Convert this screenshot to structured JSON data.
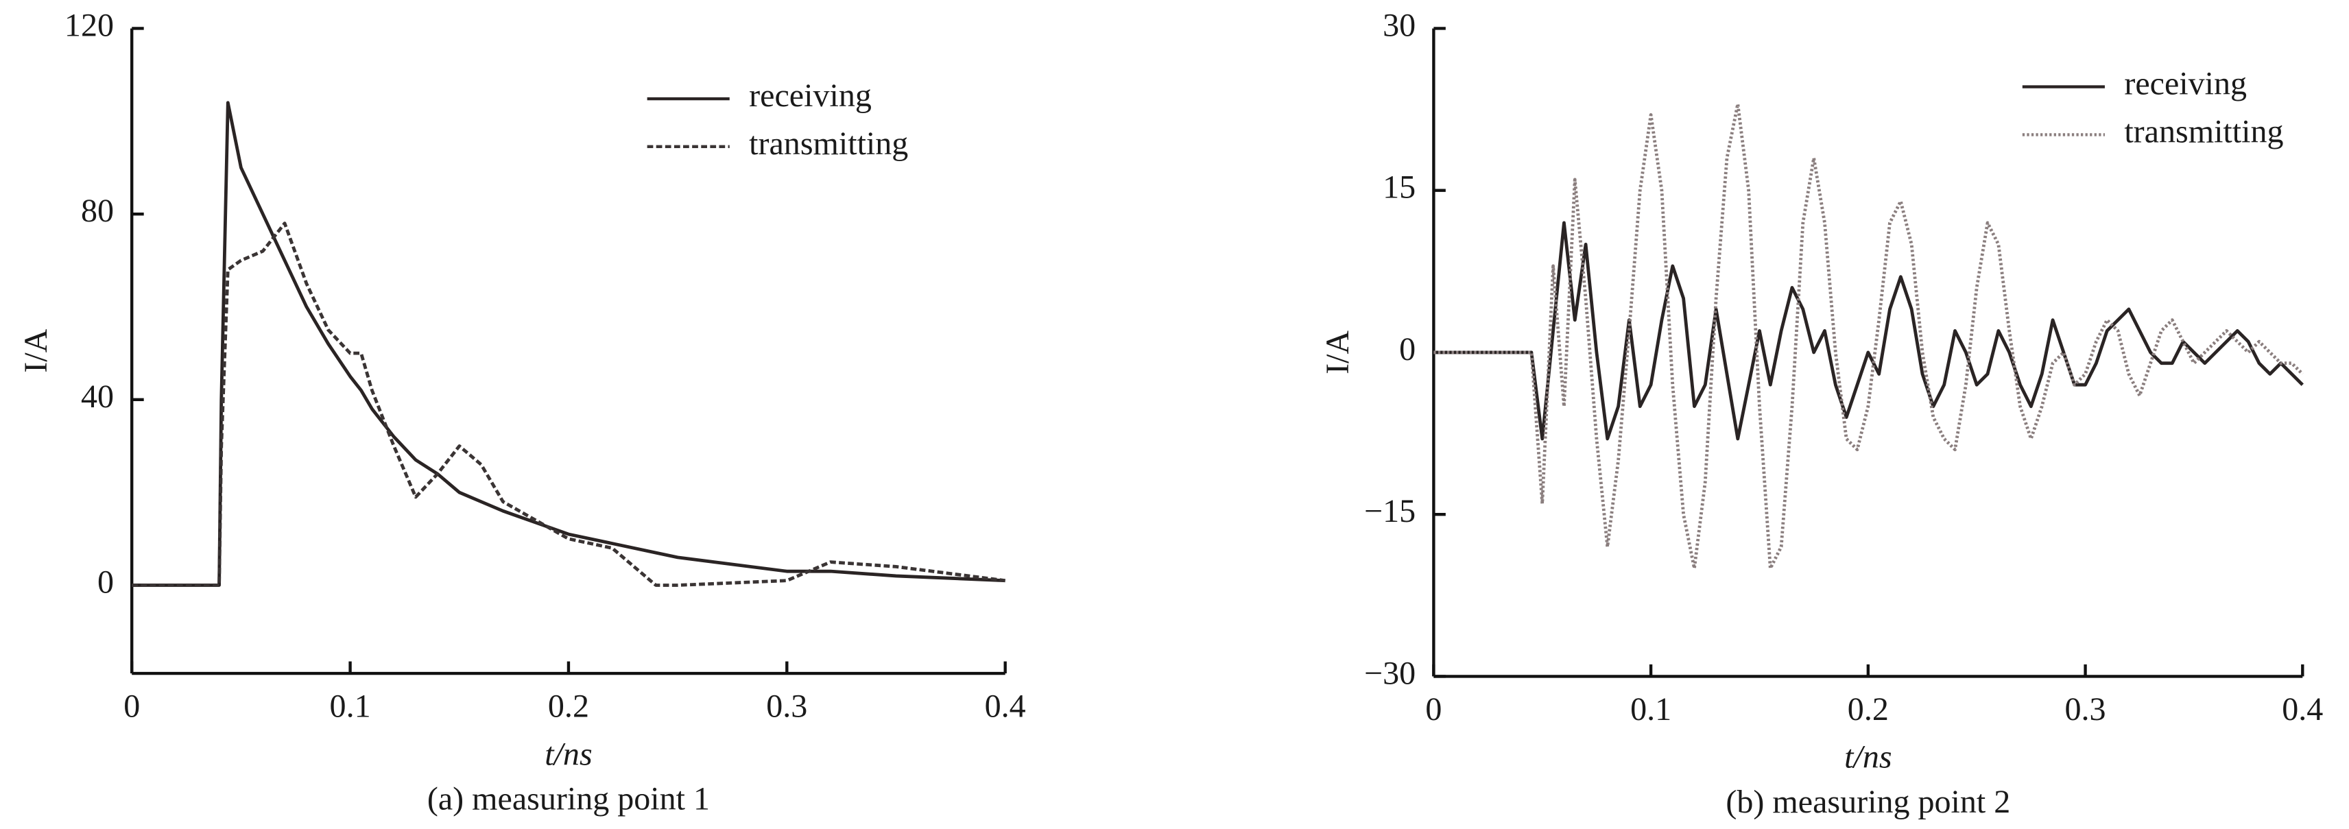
{
  "chart_data": [
    {
      "type": "line",
      "caption": "(a) measuring point 1",
      "xlabel": "t/ns",
      "ylabel": "I/A",
      "x": [
        0,
        0.04,
        0.041,
        0.044,
        0.05,
        0.06,
        0.07,
        0.08,
        0.09,
        0.1,
        0.105,
        0.11,
        0.12,
        0.13,
        0.14,
        0.15,
        0.16,
        0.17,
        0.2,
        0.22,
        0.24,
        0.25,
        0.3,
        0.32,
        0.35,
        0.4
      ],
      "series": [
        {
          "name": "receiving",
          "color": "#2a2424",
          "dash": "solid",
          "values": [
            0,
            0,
            40,
            104,
            90,
            80,
            70,
            60,
            52,
            45,
            42,
            38,
            32,
            27,
            24,
            20,
            18,
            16,
            11,
            9,
            7,
            6,
            3,
            3,
            2,
            1
          ]
        },
        {
          "name": "transmitting",
          "color": "#3a3434",
          "dash": "dashed",
          "values": [
            0,
            0,
            30,
            68,
            70,
            72,
            78,
            65,
            55,
            50,
            50,
            42,
            30,
            19,
            24,
            30,
            26,
            18,
            10,
            8,
            0,
            0,
            1,
            5,
            4,
            1
          ]
        }
      ],
      "xlim": [
        0,
        0.4
      ],
      "xticks": [
        0,
        0.1,
        0.2,
        0.3,
        0.4
      ],
      "ylim": [
        -19,
        120
      ],
      "yticks": [
        0,
        40,
        80,
        120
      ]
    },
    {
      "type": "line",
      "caption": "(b) measuring point 2",
      "xlabel": "t/ns",
      "ylabel": "I/A",
      "x": [
        0,
        0.005,
        0.01,
        0.015,
        0.02,
        0.025,
        0.03,
        0.035,
        0.04,
        0.045,
        0.05,
        0.055,
        0.06,
        0.065,
        0.07,
        0.075,
        0.08,
        0.085,
        0.09,
        0.095,
        0.1,
        0.105,
        0.11,
        0.115,
        0.12,
        0.125,
        0.13,
        0.135,
        0.14,
        0.145,
        0.15,
        0.155,
        0.16,
        0.165,
        0.17,
        0.175,
        0.18,
        0.185,
        0.19,
        0.195,
        0.2,
        0.205,
        0.21,
        0.215,
        0.22,
        0.225,
        0.23,
        0.235,
        0.24,
        0.245,
        0.25,
        0.255,
        0.26,
        0.265,
        0.27,
        0.275,
        0.28,
        0.285,
        0.29,
        0.295,
        0.3,
        0.305,
        0.31,
        0.315,
        0.32,
        0.325,
        0.33,
        0.335,
        0.34,
        0.345,
        0.35,
        0.355,
        0.36,
        0.365,
        0.37,
        0.375,
        0.38,
        0.385,
        0.39,
        0.395,
        0.4
      ],
      "series": [
        {
          "name": "receiving",
          "color": "#2a2424",
          "dash": "solid",
          "values": [
            0,
            0,
            0,
            0,
            0,
            0,
            0,
            0,
            0,
            0,
            -8,
            2,
            12,
            3,
            10,
            0,
            -8,
            -5,
            3,
            -5,
            -3,
            3,
            8,
            5,
            -5,
            -3,
            4,
            -2,
            -8,
            -3,
            2,
            -3,
            2,
            6,
            4,
            0,
            2,
            -3,
            -6,
            -3,
            0,
            -2,
            4,
            7,
            4,
            -2,
            -5,
            -3,
            2,
            0,
            -3,
            -2,
            2,
            0,
            -3,
            -5,
            -2,
            3,
            0,
            -3,
            -3,
            -1,
            2,
            3,
            4,
            2,
            0,
            -1,
            -1,
            1,
            0,
            -1,
            0,
            1,
            2,
            1,
            -1,
            -2,
            -1,
            -2,
            -3
          ]
        },
        {
          "name": "transmitting",
          "color": "#8a7e7e",
          "dash": "dotted",
          "values": [
            0,
            0,
            0,
            0,
            0,
            0,
            0,
            0,
            0,
            0,
            -14,
            8,
            -5,
            16,
            5,
            -8,
            -18,
            -10,
            2,
            15,
            22,
            15,
            -3,
            -15,
            -20,
            -12,
            5,
            18,
            23,
            15,
            -5,
            -20,
            -18,
            -5,
            12,
            18,
            12,
            0,
            -8,
            -9,
            -5,
            3,
            12,
            14,
            10,
            0,
            -6,
            -8,
            -9,
            -3,
            6,
            12,
            10,
            2,
            -5,
            -8,
            -5,
            -1,
            0,
            -3,
            -2,
            1,
            3,
            2,
            -2,
            -4,
            -1,
            2,
            3,
            1,
            -1,
            0,
            1,
            2,
            1,
            0,
            1,
            0,
            -1,
            -1,
            -2
          ]
        }
      ],
      "xlim": [
        0,
        0.4
      ],
      "xticks": [
        0,
        0.1,
        0.2,
        0.3,
        0.4
      ],
      "ylim": [
        -30,
        30
      ],
      "yticks": [
        {
          "value": -30,
          "label": "−30"
        },
        {
          "value": -15,
          "label": "−15"
        },
        0,
        15,
        30
      ]
    }
  ]
}
